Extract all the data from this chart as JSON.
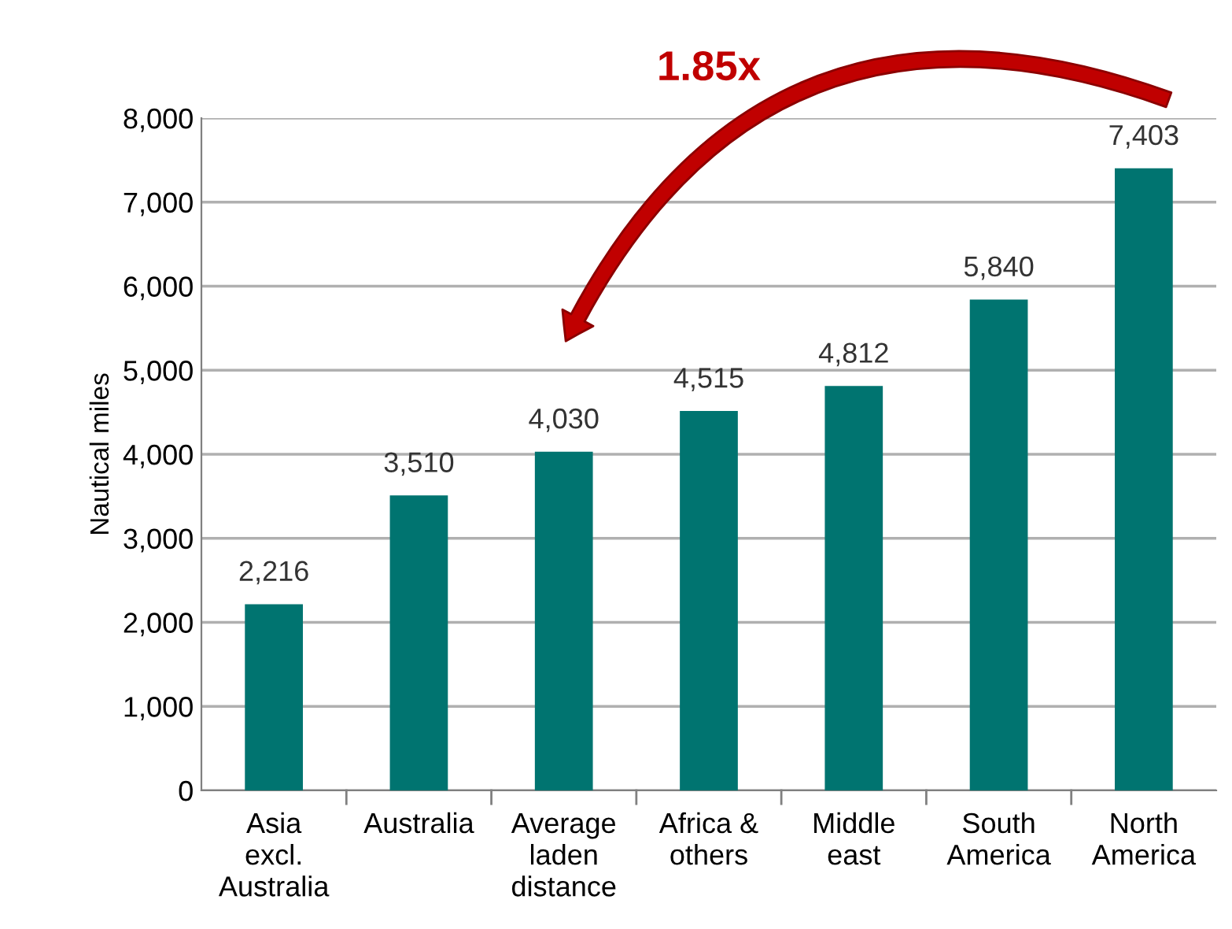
{
  "chart_data": {
    "type": "bar",
    "ylabel": "Nautical miles",
    "categories": [
      "Asia excl. Australia",
      "Australia",
      "Average laden distance",
      "Africa & others",
      "Middle east",
      "South America",
      "North America"
    ],
    "values": [
      2216,
      3510,
      4030,
      4515,
      4812,
      5840,
      7403
    ],
    "color": "#007470",
    "ylim": [
      0,
      8000
    ],
    "yticks": [
      0,
      {
        "value": 1000,
        "label": "1,000"
      },
      {
        "value": 2000,
        "label": "2,000"
      },
      {
        "value": 3000,
        "label": "3,000"
      },
      {
        "value": 4000,
        "label": "4,000"
      },
      {
        "value": 5000,
        "label": "5,000"
      },
      {
        "value": 6000,
        "label": "6,000"
      },
      {
        "value": 7000,
        "label": "7,000"
      },
      {
        "value": 8000,
        "label": "8,000"
      }
    ],
    "grid": "y",
    "value_labels": [
      "2,216",
      "3,510",
      "4,030",
      "4,515",
      "4,812",
      "5,840",
      "7,403"
    ],
    "annotations": [
      "1.85x"
    ]
  }
}
